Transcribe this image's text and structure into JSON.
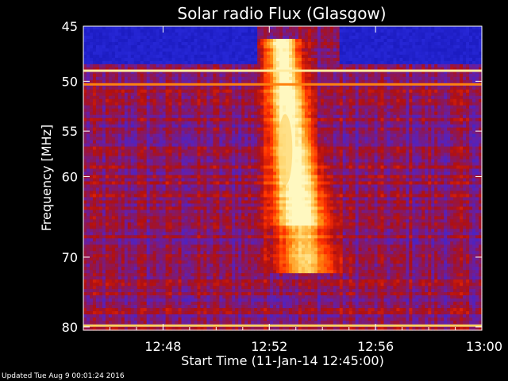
{
  "chart_data": {
    "type": "heatmap",
    "title": "Solar radio Flux (Glasgow)",
    "ylabel": "Frequency [MHz]",
    "xlabel": "Start Time (11-Jan-14 12:45:00)",
    "y_ticks": [
      {
        "value": 45,
        "label": "45"
      },
      {
        "value": 50,
        "label": "50"
      },
      {
        "value": 55,
        "label": "55"
      },
      {
        "value": 60,
        "label": "60"
      },
      {
        "value": 70,
        "label": "70"
      },
      {
        "value": 80,
        "label": "80"
      }
    ],
    "x_ticks": [
      {
        "value": 3,
        "label": "12:48"
      },
      {
        "value": 7,
        "label": "12:52"
      },
      {
        "value": 11,
        "label": "12:56"
      },
      {
        "value": 15,
        "label": "13:00"
      }
    ],
    "xlim_minutes_after_start": [
      0,
      15
    ],
    "ylim_mhz": [
      45,
      80.5
    ],
    "y_scale": "log",
    "y_inverted": true,
    "colormap": [
      "#0a0aa0",
      "#2a2adc",
      "#6020b0",
      "#b01010",
      "#ff3000",
      "#ff8a10",
      "#ffd060",
      "#fff8c0"
    ],
    "features": [
      {
        "kind": "constant-band",
        "freq_mhz": 49.0,
        "intensity": 0.95
      },
      {
        "kind": "constant-band",
        "freq_mhz": 50.3,
        "intensity": 0.7
      },
      {
        "kind": "constant-band",
        "freq_mhz": 79.8,
        "intensity": 0.85
      },
      {
        "kind": "burst",
        "start_min": 6.9,
        "peak_min": 7.6,
        "end_min": 9.5,
        "freq_range_mhz": [
          46,
          72
        ]
      },
      {
        "kind": "low-signal-region",
        "freq_range_mhz": [
          45,
          48.4
        ],
        "time_ranges_min": [
          [
            0,
            6.5
          ],
          [
            9.6,
            15
          ]
        ]
      }
    ]
  },
  "footer": {
    "updated": "Updated Tue Aug  9 00:01:24 2016"
  }
}
